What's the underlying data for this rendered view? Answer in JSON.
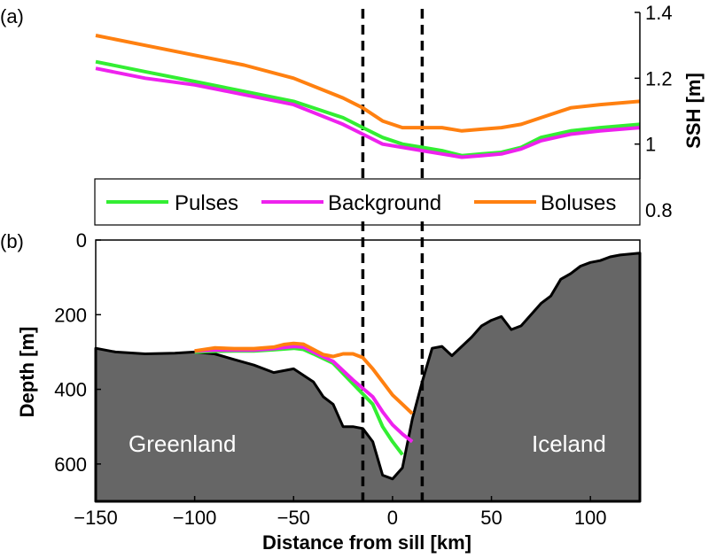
{
  "chart_data": [
    {
      "panel": "(a)",
      "type": "line",
      "ylabel": "SSH [m]",
      "y_axis_side": "right",
      "ylim": [
        0.8,
        1.4
      ],
      "y_ticks": [
        0.8,
        1,
        1.2,
        1.4
      ],
      "y_tick_labels": [
        "0.8",
        "1",
        "1.2",
        "1.4"
      ],
      "xlim": [
        -150,
        125
      ],
      "vlines": [
        -15,
        15
      ],
      "legend": {
        "placement": "bottom",
        "entries": [
          "Pulses",
          "Background",
          "Boluses"
        ]
      },
      "series": [
        {
          "name": "Pulses",
          "color": "#33ee33",
          "x": [
            -150,
            -125,
            -100,
            -75,
            -50,
            -25,
            -15,
            -5,
            5,
            15,
            25,
            35,
            45,
            55,
            65,
            75,
            90,
            105,
            125
          ],
          "y": [
            1.25,
            1.22,
            1.19,
            1.16,
            1.13,
            1.08,
            1.05,
            1.02,
            1.0,
            0.99,
            0.98,
            0.965,
            0.97,
            0.975,
            0.99,
            1.02,
            1.04,
            1.05,
            1.06
          ]
        },
        {
          "name": "Background",
          "color": "#ee22ee",
          "x": [
            -150,
            -125,
            -100,
            -75,
            -50,
            -25,
            -15,
            -5,
            5,
            15,
            25,
            35,
            45,
            55,
            65,
            75,
            90,
            105,
            125
          ],
          "y": [
            1.23,
            1.2,
            1.18,
            1.15,
            1.12,
            1.06,
            1.03,
            1.0,
            0.99,
            0.98,
            0.97,
            0.96,
            0.965,
            0.97,
            0.985,
            1.01,
            1.03,
            1.04,
            1.05
          ]
        },
        {
          "name": "Boluses",
          "color": "#ff8010",
          "x": [
            -150,
            -125,
            -100,
            -75,
            -50,
            -25,
            -15,
            -5,
            5,
            15,
            25,
            35,
            45,
            55,
            65,
            75,
            90,
            105,
            125
          ],
          "y": [
            1.33,
            1.3,
            1.27,
            1.24,
            1.2,
            1.14,
            1.11,
            1.07,
            1.05,
            1.05,
            1.05,
            1.04,
            1.045,
            1.05,
            1.06,
            1.08,
            1.11,
            1.12,
            1.13
          ]
        }
      ]
    },
    {
      "panel": "(b)",
      "type": "area",
      "xlabel": "Distance from sill [km]",
      "ylabel": "Depth [m]",
      "xlim": [
        -150,
        125
      ],
      "x_ticks": [
        -150,
        -100,
        -50,
        0,
        50,
        100
      ],
      "x_tick_labels": [
        "−150",
        "−100",
        "−50",
        "0",
        "50",
        "100"
      ],
      "ylim": [
        0,
        700
      ],
      "y_inverted": true,
      "y_ticks": [
        0,
        200,
        400,
        600
      ],
      "y_tick_labels": [
        "0",
        "200",
        "400",
        "600"
      ],
      "vlines": [
        -15,
        15
      ],
      "region_labels": [
        "Greenland",
        "Iceland"
      ],
      "bathymetry": {
        "fill_color": "#666666",
        "x": [
          -150,
          -140,
          -125,
          -110,
          -100,
          -90,
          -80,
          -70,
          -60,
          -50,
          -40,
          -35,
          -30,
          -25,
          -20,
          -15,
          -10,
          -5,
          0,
          5,
          10,
          15,
          20,
          25,
          30,
          40,
          45,
          50,
          55,
          60,
          65,
          70,
          75,
          80,
          85,
          90,
          95,
          100,
          105,
          110,
          115,
          125
        ],
        "depth": [
          290,
          300,
          305,
          303,
          300,
          305,
          320,
          335,
          355,
          345,
          380,
          420,
          440,
          500,
          500,
          505,
          540,
          630,
          640,
          610,
          480,
          380,
          290,
          285,
          310,
          260,
          230,
          215,
          205,
          240,
          230,
          200,
          170,
          150,
          105,
          90,
          70,
          60,
          55,
          45,
          40,
          35
        ]
      },
      "series": [
        {
          "name": "Pulses",
          "color": "#33ee33",
          "x": [
            -100,
            -90,
            -80,
            -70,
            -60,
            -50,
            -45,
            -40,
            -30,
            -20,
            -10,
            -5,
            0,
            5
          ],
          "depth": [
            300,
            298,
            297,
            297,
            294,
            290,
            293,
            305,
            330,
            385,
            440,
            500,
            540,
            575
          ]
        },
        {
          "name": "Background",
          "color": "#ee22ee",
          "x": [
            -100,
            -90,
            -80,
            -70,
            -60,
            -50,
            -45,
            -40,
            -30,
            -20,
            -10,
            -5,
            0,
            5,
            10
          ],
          "depth": [
            297,
            295,
            295,
            295,
            291,
            285,
            287,
            300,
            325,
            375,
            420,
            460,
            495,
            520,
            540
          ]
        },
        {
          "name": "Boluses",
          "color": "#ff8010",
          "x": [
            -100,
            -90,
            -80,
            -70,
            -60,
            -55,
            -50,
            -45,
            -40,
            -35,
            -30,
            -25,
            -20,
            -15,
            -10,
            -5,
            0,
            5,
            10
          ],
          "depth": [
            297,
            289,
            291,
            291,
            287,
            280,
            277,
            279,
            293,
            307,
            312,
            305,
            305,
            315,
            345,
            380,
            415,
            440,
            465
          ]
        }
      ]
    }
  ]
}
